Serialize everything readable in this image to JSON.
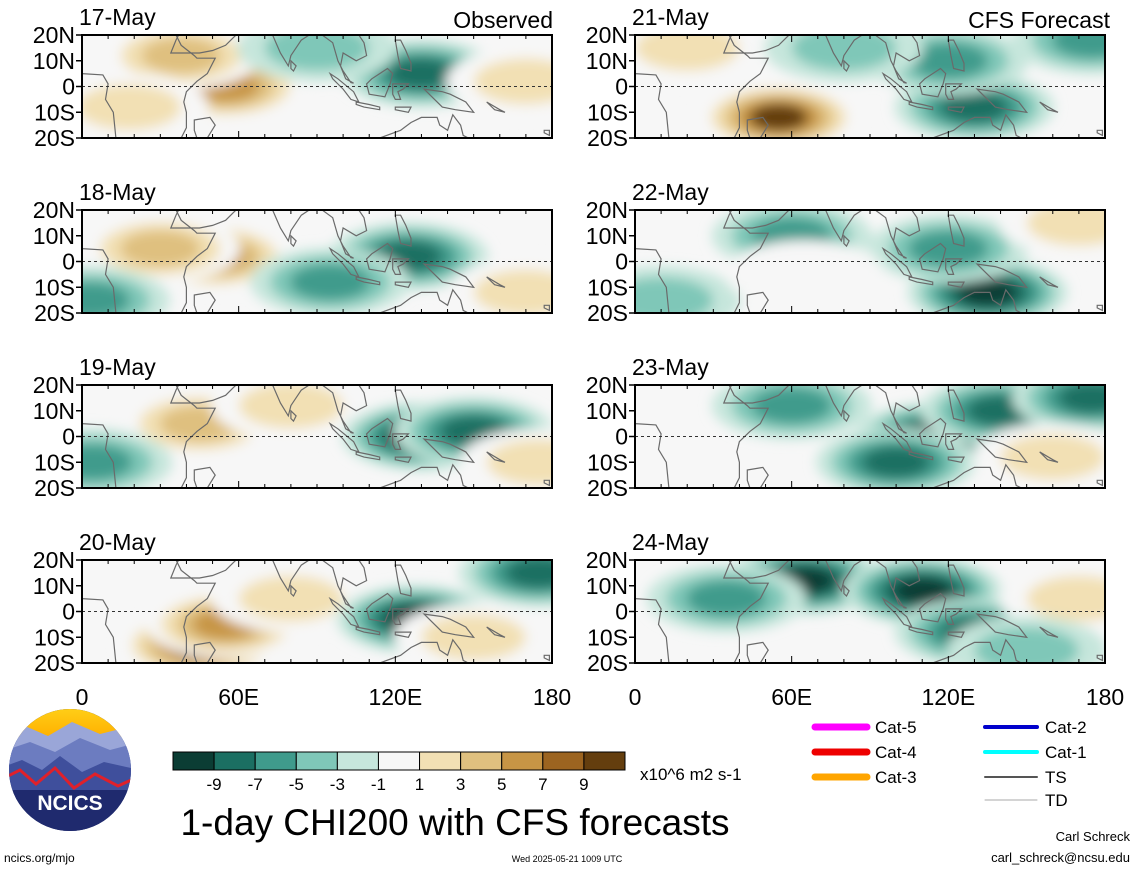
{
  "figure_title": "1-day CHI200 with CFS forecasts",
  "observed_label": "Observed",
  "forecast_label": "CFS Forecast",
  "colorbar": {
    "unit_label": "x10^6 m2 s-1",
    "tick_labels": [
      "-9",
      "-7",
      "-5",
      "-3",
      "-1",
      "1",
      "3",
      "5",
      "7",
      "9"
    ],
    "colors": [
      "#0b3d34",
      "#1b6f62",
      "#3f9b8c",
      "#7fc7b8",
      "#c6e6dc",
      "#f7f7f7",
      "#f2e0b4",
      "#dfc07f",
      "#c79545",
      "#9c6420",
      "#643e0e"
    ]
  },
  "legend": {
    "items": [
      {
        "label": "Cat-5",
        "color": "#ff00ff"
      },
      {
        "label": "Cat-4",
        "color": "#ee0000"
      },
      {
        "label": "Cat-3",
        "color": "#ffa500"
      },
      {
        "label": "Cat-2",
        "color": "#0000cc"
      },
      {
        "label": "Cat-1",
        "color": "#00ffff"
      },
      {
        "label": "TS",
        "color": "#555555"
      },
      {
        "label": "TD",
        "color": "#aaaaaa"
      }
    ]
  },
  "footer": {
    "url": "ncics.org/mjo",
    "timestamp": "Wed 2025-05-21 1009 UTC",
    "author": "Carl Schreck",
    "email": "carl_schreck@ncsu.edu",
    "logo_text": "NCICS"
  },
  "chart_data": [
    {
      "type": "heatmap",
      "title": "17-May",
      "panel": "observed",
      "xlabel": "",
      "ylabel": "",
      "xlim": [
        0,
        180
      ],
      "ylim": [
        -20,
        20
      ],
      "x_tick_labels": [
        "0",
        "60E",
        "120E",
        "180"
      ],
      "y_tick_labels": [
        "20N",
        "10N",
        "0",
        "10S",
        "20S"
      ],
      "anomalies": [
        {
          "lon": 55,
          "lat": 0,
          "value": 7
        },
        {
          "lon": 38,
          "lat": 12,
          "value": 5
        },
        {
          "lon": 18,
          "lat": -8,
          "value": 3
        },
        {
          "lon": 130,
          "lat": 5,
          "value": -7
        },
        {
          "lon": 90,
          "lat": 15,
          "value": -3
        },
        {
          "lon": 170,
          "lat": 2,
          "value": 3
        }
      ]
    },
    {
      "type": "heatmap",
      "title": "18-May",
      "panel": "observed",
      "xlabel": "",
      "ylabel": "",
      "xlim": [
        0,
        180
      ],
      "ylim": [
        -20,
        20
      ],
      "x_tick_labels": [
        "0",
        "60E",
        "120E",
        "180"
      ],
      "y_tick_labels": [
        "20N",
        "10N",
        "0",
        "10S",
        "20S"
      ],
      "anomalies": [
        {
          "lon": 50,
          "lat": 2,
          "value": 7
        },
        {
          "lon": 30,
          "lat": 5,
          "value": 5
        },
        {
          "lon": 125,
          "lat": 2,
          "value": -7
        },
        {
          "lon": 95,
          "lat": -8,
          "value": -5
        },
        {
          "lon": 3,
          "lat": -15,
          "value": -5
        },
        {
          "lon": 170,
          "lat": -12,
          "value": 3
        }
      ]
    },
    {
      "type": "heatmap",
      "title": "19-May",
      "panel": "observed",
      "xlabel": "",
      "ylabel": "",
      "xlim": [
        0,
        180
      ],
      "ylim": [
        -20,
        20
      ],
      "x_tick_labels": [
        "0",
        "60E",
        "120E",
        "180"
      ],
      "y_tick_labels": [
        "20N",
        "10N",
        "0",
        "10S",
        "20S"
      ],
      "anomalies": [
        {
          "lon": 45,
          "lat": 5,
          "value": 5
        },
        {
          "lon": 80,
          "lat": 12,
          "value": 3
        },
        {
          "lon": 130,
          "lat": 0,
          "value": -9
        },
        {
          "lon": 150,
          "lat": 2,
          "value": -7
        },
        {
          "lon": 4,
          "lat": -10,
          "value": -5
        },
        {
          "lon": 175,
          "lat": -10,
          "value": 3
        }
      ]
    },
    {
      "type": "heatmap",
      "title": "20-May",
      "panel": "observed",
      "xlabel": "",
      "ylabel": "",
      "xlim": [
        0,
        180
      ],
      "ylim": [
        -20,
        20
      ],
      "x_tick_labels": [
        "0",
        "60E",
        "120E",
        "180"
      ],
      "y_tick_labels": [
        "20N",
        "10N",
        "0",
        "10S",
        "20S"
      ],
      "anomalies": [
        {
          "lon": 45,
          "lat": -13,
          "value": 9
        },
        {
          "lon": 55,
          "lat": -5,
          "value": 7
        },
        {
          "lon": 80,
          "lat": 5,
          "value": 3
        },
        {
          "lon": 128,
          "lat": -3,
          "value": -9
        },
        {
          "lon": 175,
          "lat": 15,
          "value": -7
        },
        {
          "lon": 150,
          "lat": -10,
          "value": 3
        }
      ]
    },
    {
      "type": "heatmap",
      "title": "21-May",
      "panel": "forecast",
      "xlabel": "",
      "ylabel": "",
      "xlim": [
        0,
        180
      ],
      "ylim": [
        -20,
        20
      ],
      "x_tick_labels": [
        "0",
        "60E",
        "120E",
        "180"
      ],
      "y_tick_labels": [
        "20N",
        "10N",
        "0",
        "10S",
        "20S"
      ],
      "anomalies": [
        {
          "lon": 55,
          "lat": -12,
          "value": 9
        },
        {
          "lon": 20,
          "lat": 15,
          "value": 3
        },
        {
          "lon": 130,
          "lat": -8,
          "value": -7
        },
        {
          "lon": 120,
          "lat": 10,
          "value": -5
        },
        {
          "lon": 175,
          "lat": 18,
          "value": -5
        },
        {
          "lon": 80,
          "lat": 15,
          "value": -3
        }
      ]
    },
    {
      "type": "heatmap",
      "title": "22-May",
      "panel": "forecast",
      "xlabel": "",
      "ylabel": "",
      "xlim": [
        0,
        180
      ],
      "ylim": [
        -20,
        20
      ],
      "x_tick_labels": [
        "0",
        "60E",
        "120E",
        "180"
      ],
      "y_tick_labels": [
        "20N",
        "10N",
        "0",
        "10S",
        "20S"
      ],
      "anomalies": [
        {
          "lon": 135,
          "lat": -12,
          "value": -9
        },
        {
          "lon": 120,
          "lat": 5,
          "value": -5
        },
        {
          "lon": 60,
          "lat": 10,
          "value": -5
        },
        {
          "lon": 10,
          "lat": -15,
          "value": -3
        },
        {
          "lon": 170,
          "lat": 15,
          "value": 3
        },
        {
          "lon": 65,
          "lat": -5,
          "value": 1
        }
      ]
    },
    {
      "type": "heatmap",
      "title": "23-May",
      "panel": "forecast",
      "xlabel": "",
      "ylabel": "",
      "xlim": [
        0,
        180
      ],
      "ylim": [
        -20,
        20
      ],
      "x_tick_labels": [
        "0",
        "60E",
        "120E",
        "180"
      ],
      "y_tick_labels": [
        "20N",
        "10N",
        "0",
        "10S",
        "20S"
      ],
      "anomalies": [
        {
          "lon": 115,
          "lat": 0,
          "value": -9
        },
        {
          "lon": 100,
          "lat": -10,
          "value": -7
        },
        {
          "lon": 140,
          "lat": 10,
          "value": -7
        },
        {
          "lon": 60,
          "lat": 12,
          "value": -5
        },
        {
          "lon": 175,
          "lat": 15,
          "value": -7
        },
        {
          "lon": 160,
          "lat": -8,
          "value": 3
        }
      ]
    },
    {
      "type": "heatmap",
      "title": "24-May",
      "panel": "forecast",
      "xlabel": "",
      "ylabel": "",
      "xlim": [
        0,
        180
      ],
      "ylim": [
        -20,
        20
      ],
      "x_tick_labels": [
        "0",
        "60E",
        "120E",
        "180"
      ],
      "y_tick_labels": [
        "20N",
        "10N",
        "0",
        "10S",
        "20S"
      ],
      "anomalies": [
        {
          "lon": 65,
          "lat": 12,
          "value": -9
        },
        {
          "lon": 110,
          "lat": 8,
          "value": -9
        },
        {
          "lon": 130,
          "lat": -8,
          "value": -7
        },
        {
          "lon": 35,
          "lat": 5,
          "value": -5
        },
        {
          "lon": 170,
          "lat": 5,
          "value": 3
        },
        {
          "lon": 150,
          "lat": -15,
          "value": -3
        }
      ]
    }
  ]
}
